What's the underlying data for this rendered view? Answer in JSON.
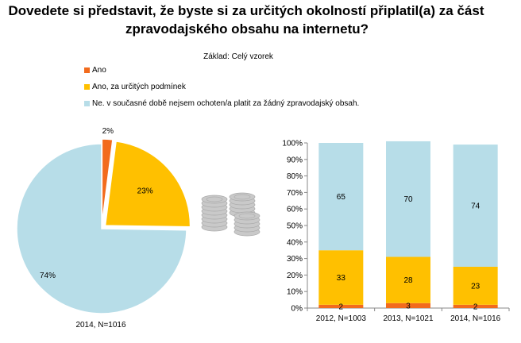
{
  "title": {
    "line1": "Dovedete si představit, že byste si za určitých okolností připlatil(a) za část",
    "line2": "zpravodajského obsahu na internetu?"
  },
  "subtitle": "Základ: Celý vzorek",
  "legend": [
    {
      "label": "Ano",
      "color": "#f26b1d"
    },
    {
      "label": "Ano, za určitých podmínek",
      "color": "#ffc000"
    },
    {
      "label": "Ne. v současné době nejsem ochoten/a platit za žádný zpravodajský obsah.",
      "color": "#b7dde8"
    }
  ],
  "decoration": {
    "icon": "coin-stack-icon"
  },
  "chart_data": [
    {
      "type": "pie",
      "title": "2014, N=1016",
      "categories": [
        "Ano",
        "Ano, za určitých podmínek",
        "Ne. v současné době nejsem ochoten/a platit za žádný zpravodajský obsah."
      ],
      "values": [
        2,
        23,
        74
      ],
      "labels": [
        "2%",
        "23%",
        "74%"
      ],
      "colors": [
        "#f26b1d",
        "#ffc000",
        "#b7dde8"
      ]
    },
    {
      "type": "bar",
      "stacked": true,
      "percent": true,
      "categories": [
        "2012, N=1003",
        "2013, N=1021",
        "2014, N=1016"
      ],
      "series": [
        {
          "name": "Ano",
          "values": [
            2,
            3,
            2
          ],
          "color": "#f26b1d"
        },
        {
          "name": "Ano, za určitých podmínek",
          "values": [
            33,
            28,
            23
          ],
          "color": "#ffc000"
        },
        {
          "name": "Ne. v současné době nejsem ochoten/a platit za žádný zpravodajský obsah.",
          "values": [
            65,
            70,
            74
          ],
          "color": "#b7dde8"
        }
      ],
      "ylim": [
        0,
        100
      ],
      "yticks": [
        "0%",
        "10%",
        "20%",
        "30%",
        "40%",
        "50%",
        "60%",
        "70%",
        "80%",
        "90%",
        "100%"
      ]
    }
  ]
}
